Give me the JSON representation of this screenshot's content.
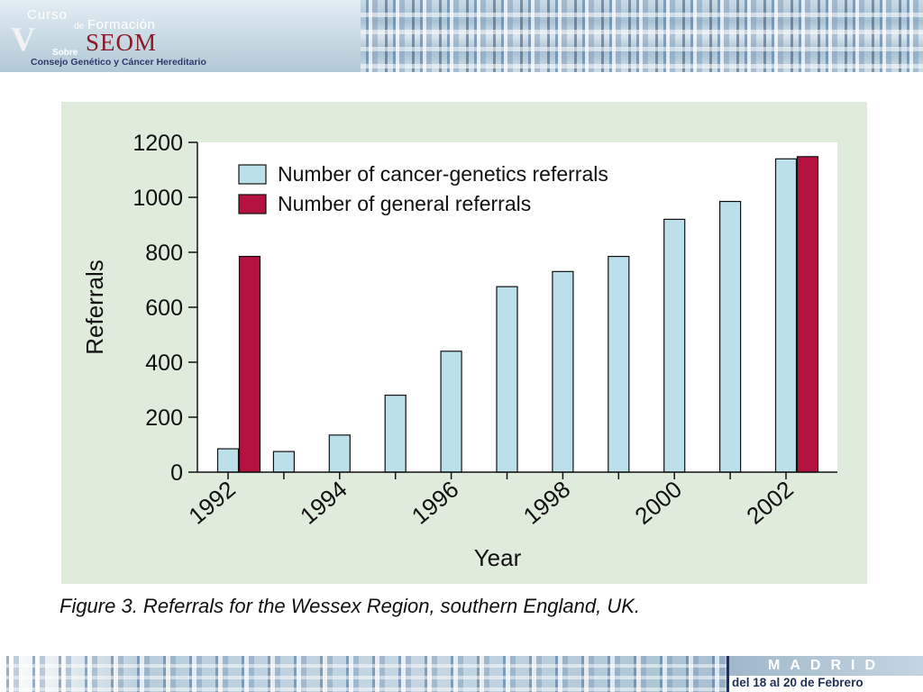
{
  "header": {
    "logo_curso": "Curso",
    "logo_de": "de",
    "logo_formacion": "Formación",
    "logo_numeral": "V",
    "logo_org": "SEOM",
    "logo_sobre": "Sobre",
    "logo_subtitle": "Consejo Genético y Cáncer Hereditario"
  },
  "figure": {
    "caption": "Figure 3. Referrals for the Wessex Region, southern England, UK."
  },
  "footer": {
    "city": "MADRID",
    "dates": "del 18 al 20 de Febrero"
  },
  "colors": {
    "cancer_genetics": "#bcdfec",
    "general": "#b5123f",
    "panel_bg": "#dfecdc"
  },
  "chart_data": {
    "type": "bar",
    "title": "",
    "xlabel": "Year",
    "ylabel": "Referrals",
    "ylim": [
      0,
      1200
    ],
    "yticks": [
      0,
      200,
      400,
      600,
      800,
      1000,
      1200
    ],
    "categories": [
      "1992",
      "1993",
      "1994",
      "1995",
      "1996",
      "1997",
      "1998",
      "1999",
      "2000",
      "2001",
      "2002"
    ],
    "xtick_labels": [
      "1992",
      "1994",
      "1996",
      "1998",
      "2000",
      "2002"
    ],
    "legend_position": "top-left",
    "grid": false,
    "series": [
      {
        "name": "Number of cancer-genetics referrals",
        "color": "#bcdfec",
        "values": [
          85,
          75,
          135,
          280,
          440,
          675,
          730,
          785,
          920,
          985,
          1140
        ]
      },
      {
        "name": "Number of general referrals",
        "color": "#b5123f",
        "values": [
          785,
          null,
          null,
          null,
          null,
          null,
          null,
          null,
          null,
          null,
          1148
        ]
      }
    ]
  }
}
